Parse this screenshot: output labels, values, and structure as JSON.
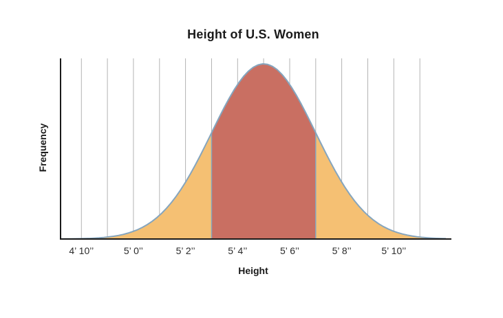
{
  "chart_data": {
    "type": "area",
    "distribution": "normal",
    "title": "Height of U.S. Women",
    "xlabel": "Height",
    "ylabel": "Frequency",
    "mean_inches": 65,
    "sd_inches": 2,
    "highlight_range_inches": [
      63,
      67
    ],
    "x_ticks_inches": [
      58,
      60,
      62,
      64,
      66,
      68,
      70
    ],
    "x_tick_labels": [
      "4’ 10’’",
      "5’ 0’’",
      "5’ 2’’",
      "5’ 4’’",
      "5’ 6’’",
      "5’ 8’’",
      "5’ 10’’"
    ],
    "x_range_inches": [
      57.2,
      72.0
    ],
    "gridlines_inches": [
      58,
      59,
      60,
      61,
      62,
      63,
      64,
      65,
      66,
      67,
      68,
      69,
      70,
      71
    ],
    "grid": true,
    "y_axis_ticks": "none",
    "legend": "none",
    "colors": {
      "tail_fill": "#F5C073",
      "center_fill": "#C96F62",
      "curve_stroke": "#85A5BE",
      "gridline": "#B3B3B3",
      "axis": "#1A1A1A"
    }
  }
}
